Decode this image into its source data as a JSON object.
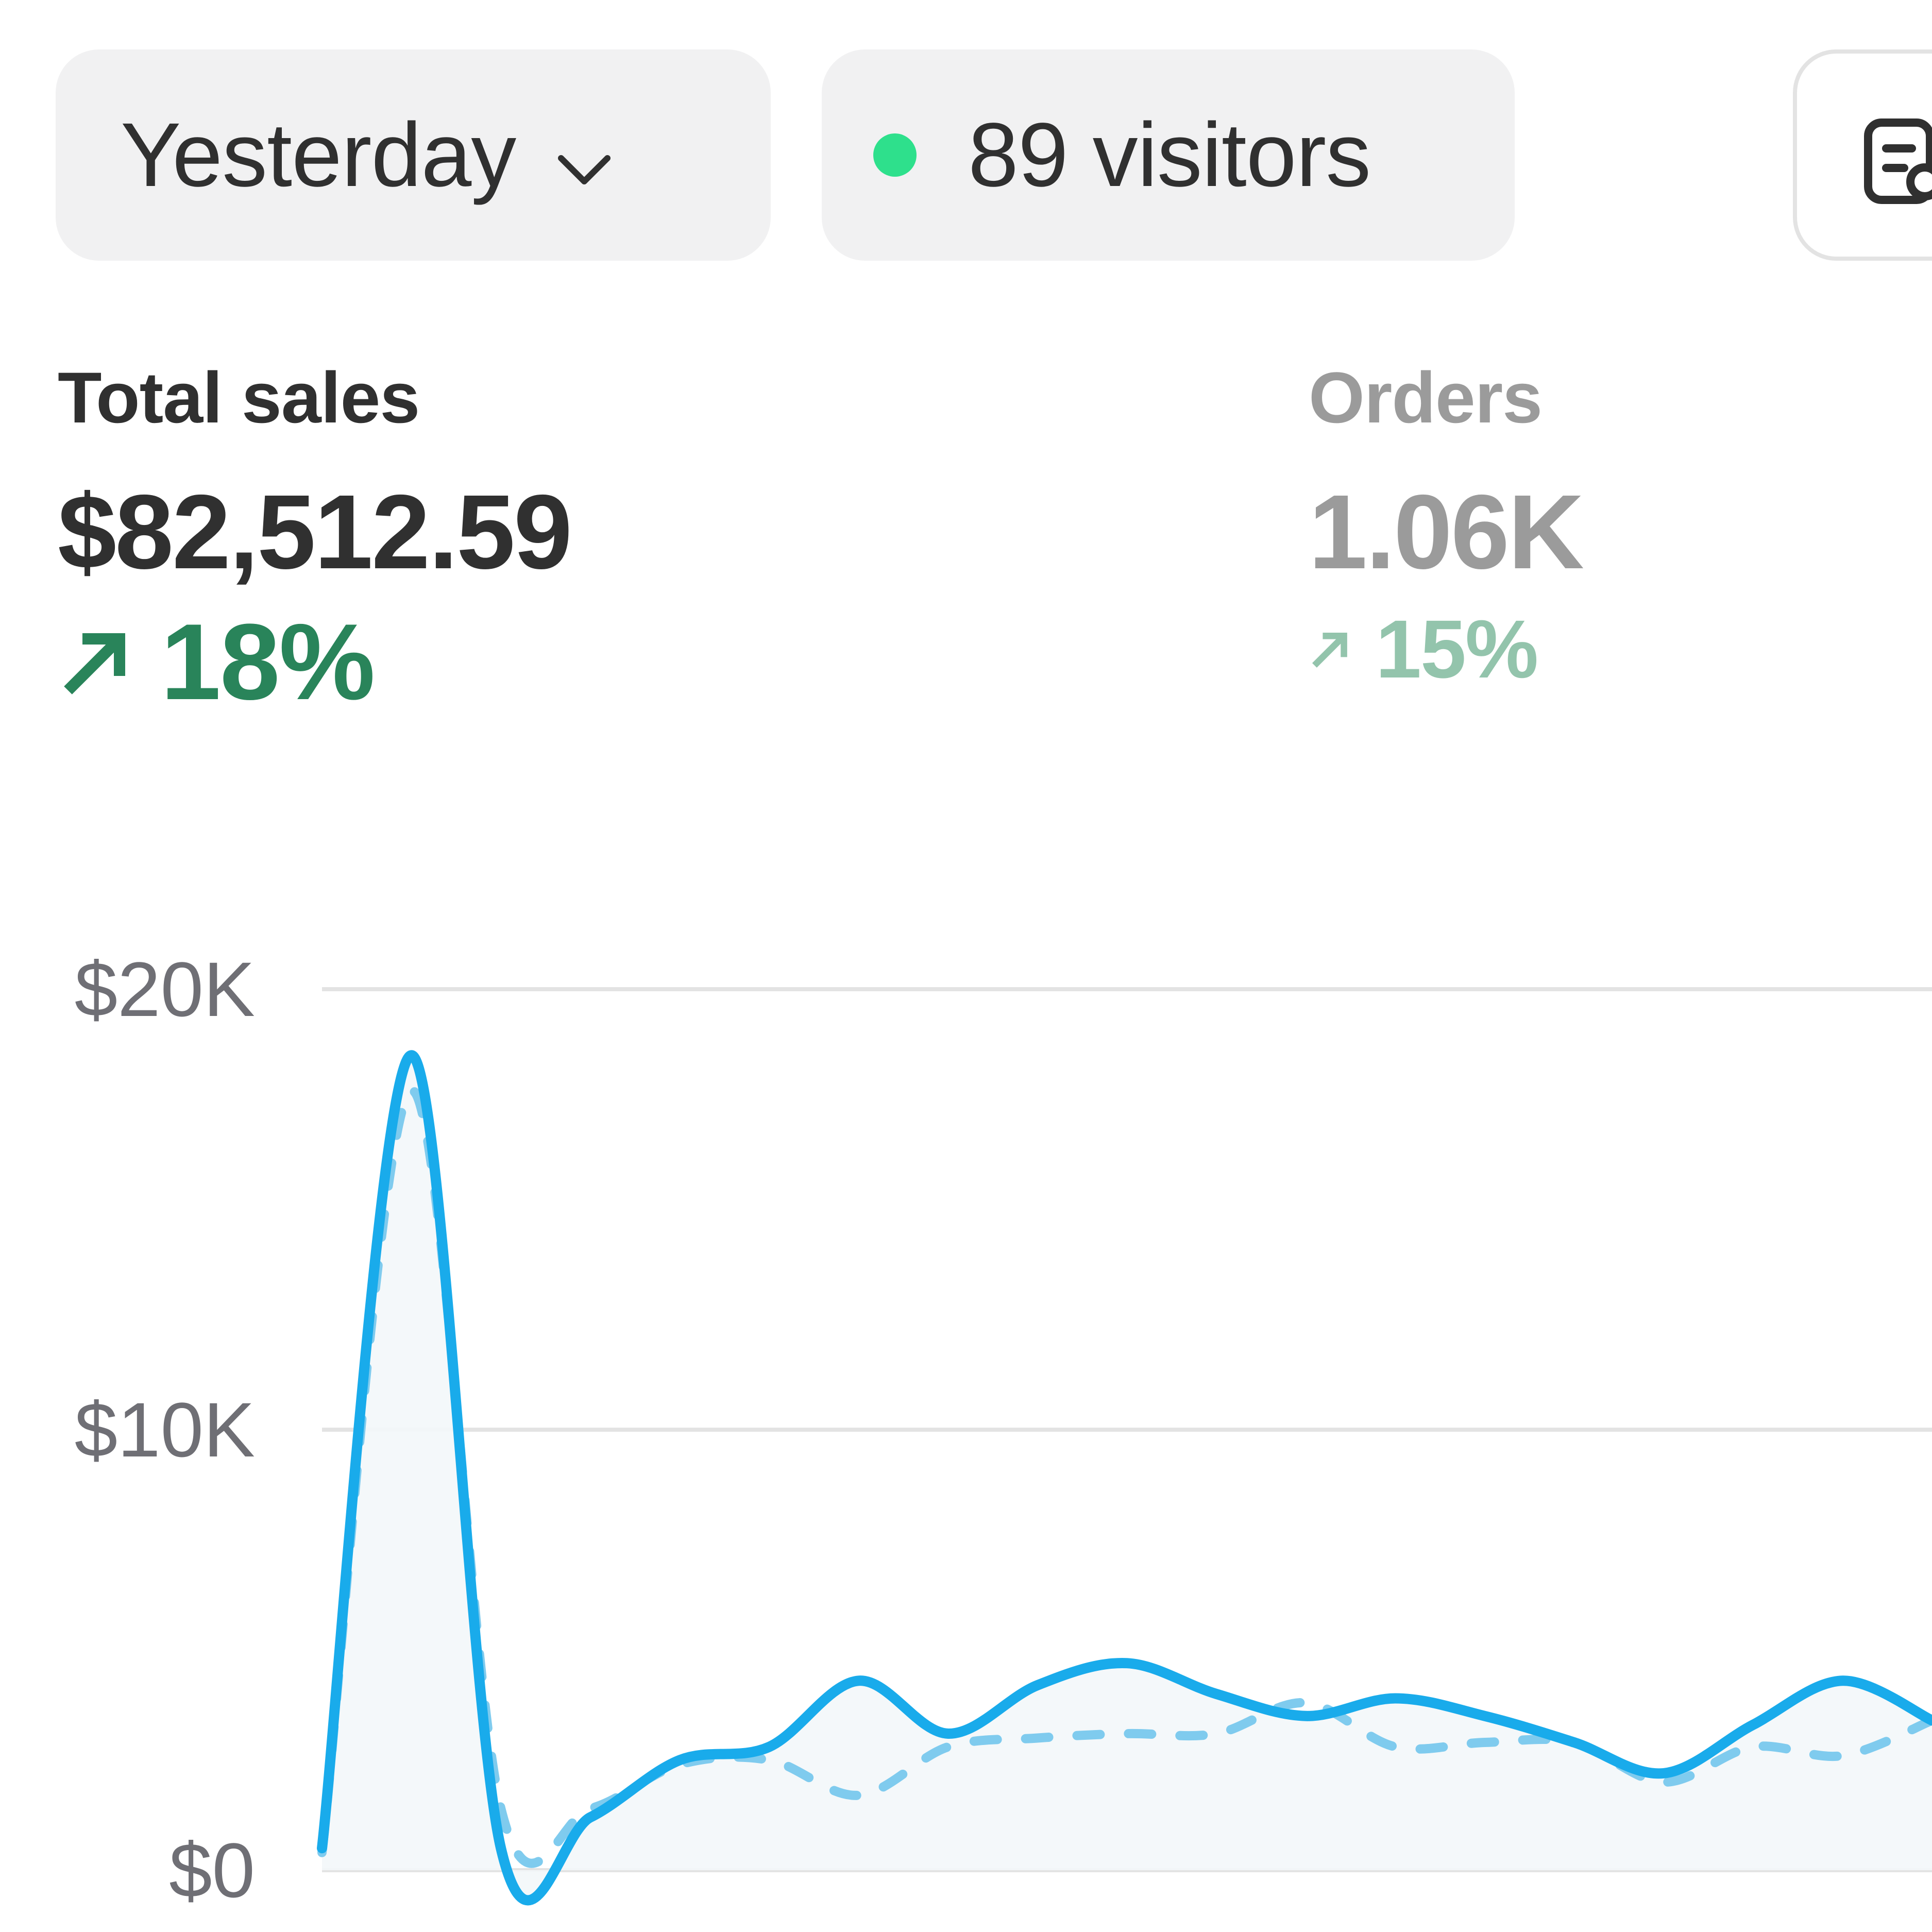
{
  "filters": {
    "date_range": "Yesterday",
    "visitors": "89 visitors",
    "live_dot_color": "#2ee08c",
    "date_icon": "chevron-down-icon",
    "right_icon": "report-icon"
  },
  "metrics": {
    "total_sales": {
      "label": "Total sales",
      "value": "$82,512.59",
      "change": "18%",
      "trend": "up",
      "color": "#29845a"
    },
    "orders": {
      "label": "Orders",
      "value": "1.06K",
      "change": "15%",
      "trend": "up",
      "color": "#93c4ac"
    }
  },
  "chart_data": {
    "type": "line",
    "yticks": [
      "$0",
      "$10K",
      "$20K"
    ],
    "ylim": [
      0,
      20000
    ],
    "grid": true,
    "series": [
      {
        "style": "solid",
        "color": "#19abeb",
        "values": [
          500,
          18500,
          500,
          1200,
          2500,
          2800,
          4300,
          3100,
          4200,
          4700,
          4000,
          3500,
          3900,
          3500,
          2900,
          2200,
          3300,
          4300,
          3400
        ]
      },
      {
        "style": "dashed",
        "color": "#7fcbee",
        "values": [
          400,
          17700,
          1400,
          1400,
          2400,
          2500,
          1700,
          2800,
          3000,
          3100,
          3100,
          3800,
          2800,
          2900,
          2900,
          2000,
          2800,
          2600,
          3400
        ]
      }
    ]
  }
}
